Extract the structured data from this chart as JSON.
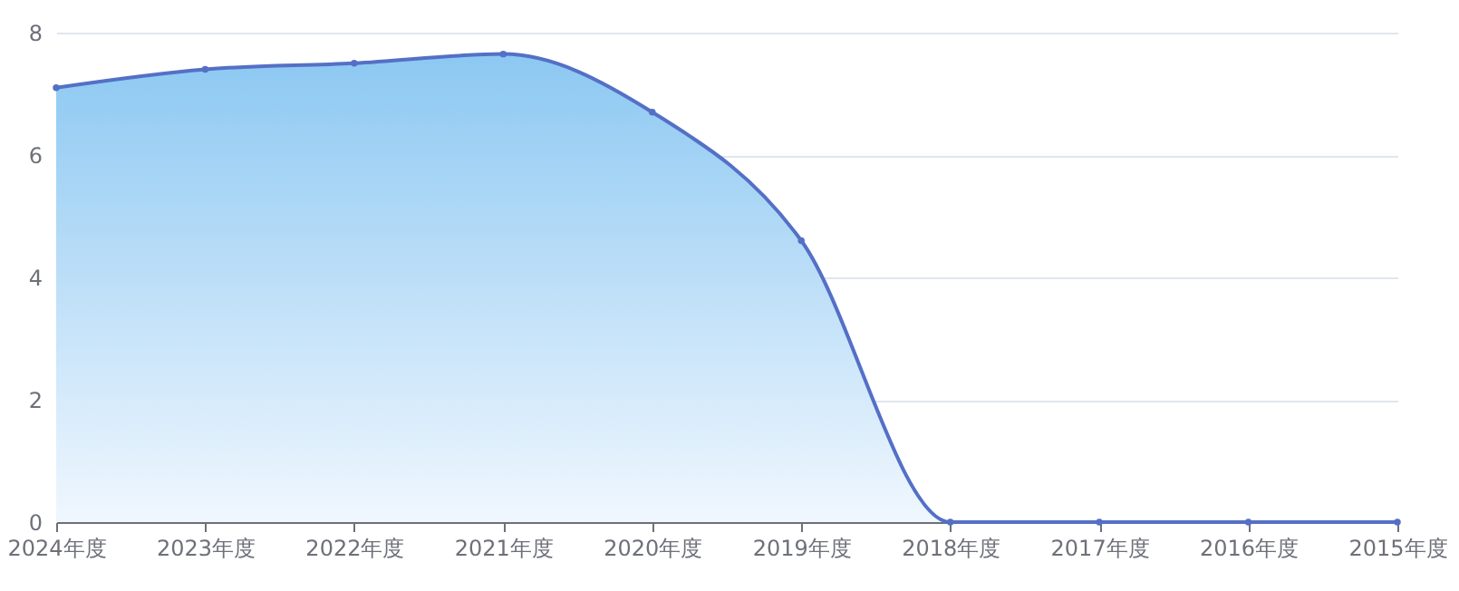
{
  "chart_data": {
    "type": "area",
    "categories": [
      "2024年度",
      "2023年度",
      "2022年度",
      "2021年度",
      "2020年度",
      "2019年度",
      "2018年度",
      "2017年度",
      "2016年度",
      "2015年度"
    ],
    "series": [
      {
        "color": "#5470c6",
        "values": [
          7.1,
          7.4,
          7.5,
          7.65,
          6.7,
          4.6,
          0,
          0,
          0,
          0
        ]
      }
    ],
    "ylim": [
      0,
      8
    ],
    "yticks": [
      0,
      2,
      4,
      6,
      8
    ],
    "grid": "y",
    "marker": "circle",
    "line_style": "solid"
  }
}
